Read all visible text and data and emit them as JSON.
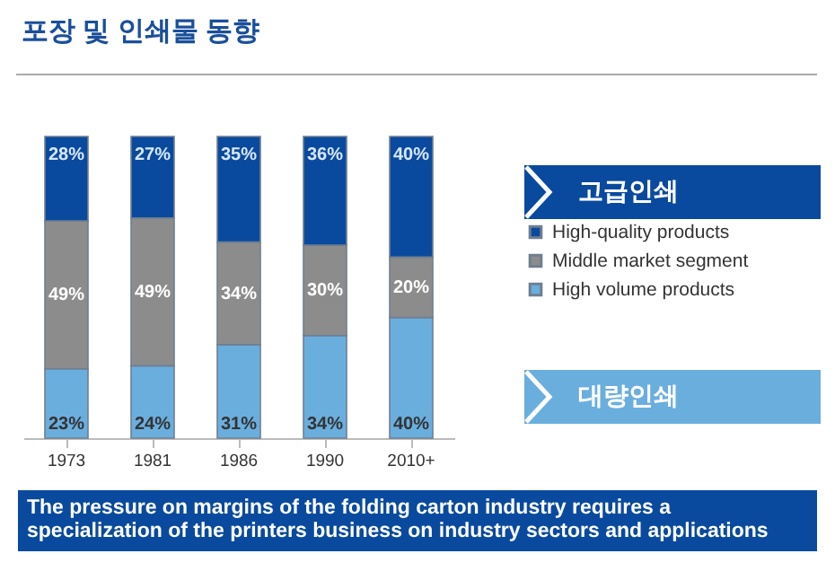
{
  "chart_data": {
    "type": "bar",
    "title": "포장 및 인쇄물  동향",
    "categories": [
      "1973",
      "1981",
      "1986",
      "1990",
      "2010+"
    ],
    "stacked": true,
    "series": [
      {
        "name": "High volume products",
        "color": "#6aaede",
        "values": [
          23,
          24,
          31,
          34,
          40
        ],
        "value_labels": [
          "23%",
          "24%",
          "31%",
          "34%",
          "40%"
        ]
      },
      {
        "name": "Middle market segment",
        "color": "#8c8c8c",
        "values": [
          49,
          49,
          34,
          30,
          20
        ],
        "value_labels": [
          "49%",
          "49%",
          "34%",
          "30%",
          "20%"
        ]
      },
      {
        "name": "High-quality products",
        "color": "#0a4a9e",
        "values": [
          28,
          27,
          35,
          36,
          40
        ],
        "value_labels": [
          "28%",
          "27%",
          "35%",
          "36%",
          "40%"
        ]
      }
    ],
    "ylim": [
      0,
      100
    ],
    "tick_labels": "x",
    "legend": "right",
    "annotations": [
      "고급인쇄",
      "대량인쇄",
      "The pressure on margins of the folding carton industry requires a specialization of the printers business on industry sectors and applications"
    ]
  }
}
